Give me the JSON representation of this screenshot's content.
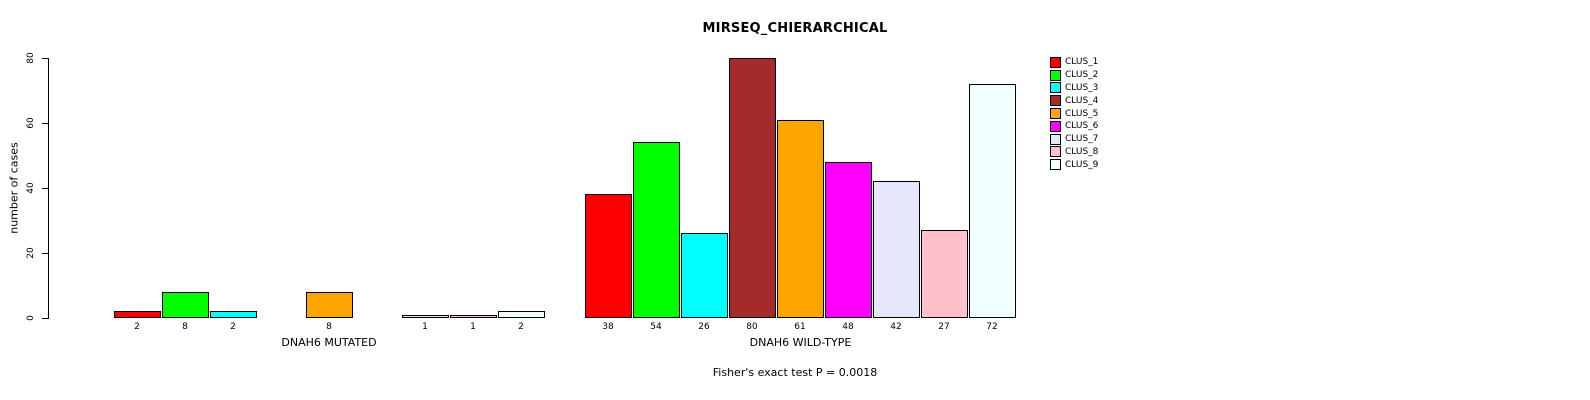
{
  "chart_data": {
    "type": "bar",
    "title": "MIRSEQ_CHIERARCHICAL",
    "ylabel": "number of cases",
    "xlabel": "",
    "ylim": [
      0,
      80
    ],
    "yticks": [
      0,
      20,
      40,
      60,
      80
    ],
    "grid": false,
    "legend_position": "right",
    "annotation": "Fisher's exact test P = 0.0018",
    "clusters": [
      {
        "name": "CLUS_1",
        "color": "#FF0000"
      },
      {
        "name": "CLUS_2",
        "color": "#00FF00"
      },
      {
        "name": "CLUS_3",
        "color": "#00FFFF"
      },
      {
        "name": "CLUS_4",
        "color": "#A52A2A"
      },
      {
        "name": "CLUS_5",
        "color": "#FFA500"
      },
      {
        "name": "CLUS_6",
        "color": "#FF00FF"
      },
      {
        "name": "CLUS_7",
        "color": "#E6E6FA"
      },
      {
        "name": "CLUS_8",
        "color": "#FFC0CB"
      },
      {
        "name": "CLUS_9",
        "color": "#F0FFFF"
      }
    ],
    "groups": [
      {
        "label": "DNAH6 MUTATED",
        "values": [
          2,
          8,
          2,
          0,
          8,
          0,
          1,
          1,
          2
        ]
      },
      {
        "label": "DNAH6 WILD-TYPE",
        "values": [
          38,
          54,
          26,
          80,
          61,
          48,
          42,
          27,
          72
        ]
      }
    ]
  }
}
